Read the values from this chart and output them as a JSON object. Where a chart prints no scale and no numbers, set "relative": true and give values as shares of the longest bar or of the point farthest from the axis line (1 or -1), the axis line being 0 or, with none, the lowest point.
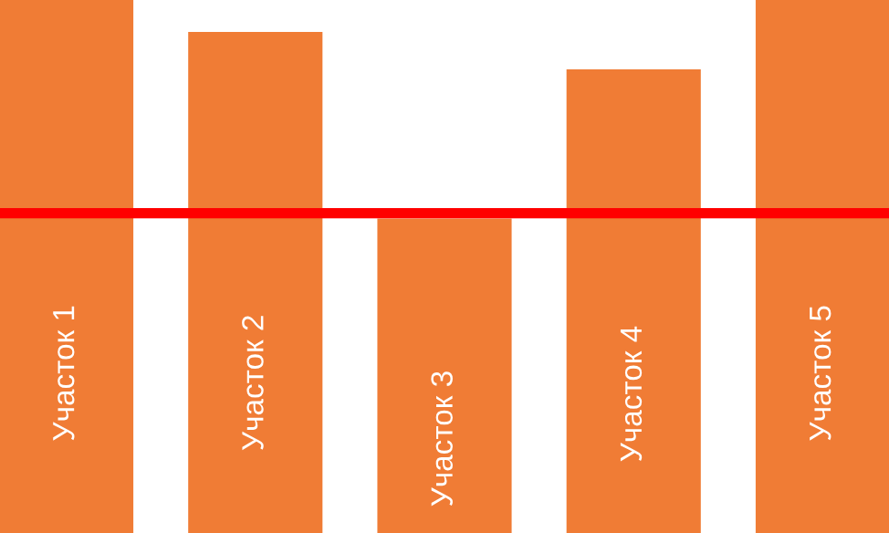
{
  "chart_data": {
    "type": "bar",
    "relative": true,
    "categories": [
      "Участок 1",
      "Участок 2",
      "Участок 3",
      "Участок 4",
      "Участок 5"
    ],
    "values": [
      1.0,
      0.94,
      0.59,
      0.87,
      1.0
    ],
    "color": "#f07c35",
    "ref_lines": [
      {
        "axis": "y",
        "value": 0.6,
        "color": "#ff0000"
      }
    ]
  }
}
